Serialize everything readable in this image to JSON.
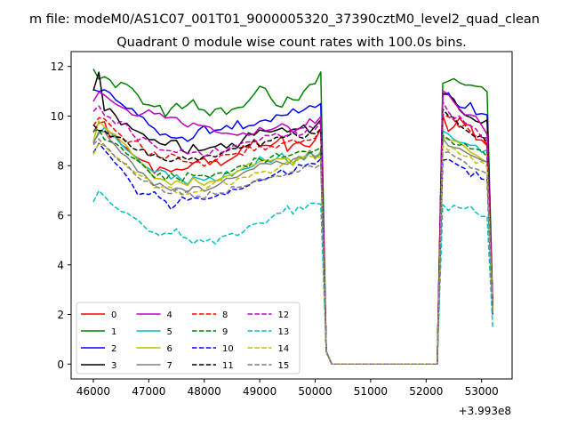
{
  "chart_data": {
    "type": "line",
    "suptitle": "m file: modeM0/AS1C07_001T01_9000005320_37390cztM0_level2_quad_clean",
    "title": "Quadrant 0 module wise count rates with 100.0s bins.",
    "xlabel": "",
    "ylabel": "",
    "x_offset_label": "+3.993e8",
    "xlim": [
      45600,
      53550
    ],
    "ylim": [
      -0.6,
      12.6
    ],
    "xticks": [
      46000,
      47000,
      48000,
      49000,
      50000,
      51000,
      52000,
      53000
    ],
    "yticks": [
      0,
      2,
      4,
      6,
      8,
      10,
      12
    ],
    "legend": {
      "position": "lower-left",
      "ncol": 4
    },
    "x_active1": [
      46000,
      46100,
      46200,
      46300,
      46400,
      46500,
      46600,
      46700,
      46800,
      46900,
      47000,
      47100,
      47200,
      47300,
      47400,
      47500,
      47600,
      47700,
      47800,
      47900,
      48000,
      48100,
      48200,
      48300,
      48400,
      48500,
      48600,
      48700,
      48800,
      48900,
      49000,
      49100,
      49200,
      49300,
      49400,
      49500,
      49600,
      49700,
      49800,
      49900,
      50000,
      50100
    ],
    "x_gap": [
      50200,
      50300,
      50400,
      52200
    ],
    "x_active2": [
      52300,
      52400,
      52500,
      52600,
      52700,
      52800,
      52900,
      53000,
      53100,
      53200
    ],
    "series": [
      {
        "name": "0",
        "color": "#ff0000",
        "dash": false,
        "act1": [
          9.35,
          9.72,
          9.77,
          9.14,
          9.22,
          8.85,
          8.71,
          8.46,
          8.3,
          8.2,
          8.12,
          7.69,
          7.94,
          7.87,
          7.76,
          7.86,
          7.83,
          7.9,
          8.1,
          8.23,
          8.3,
          8.04,
          8.25,
          8.01,
          8.16,
          8.29,
          8.44,
          8.8,
          8.72,
          9.06,
          8.8,
          8.82,
          8.8,
          8.96,
          9.19,
          8.58,
          8.85,
          8.96,
          8.81,
          8.76,
          9.04,
          9.5
        ],
        "gap": [
          0.5,
          0.0,
          0.0,
          0.0
        ],
        "act2": [
          10.02,
          9.39,
          9.57,
          9.92,
          9.66,
          9.63,
          9.05,
          9.03,
          8.81,
          2.4
        ]
      },
      {
        "name": "1",
        "color": "#008000",
        "dash": false,
        "act1": [
          11.9,
          11.49,
          11.59,
          11.46,
          11.15,
          11.36,
          11.28,
          11.12,
          10.85,
          10.48,
          10.45,
          10.38,
          10.43,
          9.97,
          10.29,
          10.51,
          10.3,
          10.45,
          10.66,
          10.28,
          10.24,
          10.02,
          10.28,
          10.33,
          10.07,
          10.27,
          10.34,
          10.37,
          10.61,
          10.89,
          11.2,
          11.12,
          10.72,
          10.43,
          10.36,
          10.77,
          10.66,
          10.64,
          11.01,
          11.27,
          11.31,
          11.78
        ],
        "gap": [
          0.5,
          0.0,
          0.0,
          0.0
        ],
        "act2": [
          11.32,
          11.41,
          11.51,
          11.35,
          11.25,
          11.25,
          11.2,
          11.18,
          10.98,
          2.4
        ]
      },
      {
        "name": "2",
        "color": "#0000ff",
        "dash": false,
        "act1": [
          11.07,
          10.99,
          11.06,
          10.94,
          10.66,
          10.5,
          10.31,
          10.3,
          10.04,
          9.95,
          9.65,
          9.5,
          9.24,
          9.28,
          9.14,
          9.11,
          9.15,
          8.98,
          9.12,
          9.45,
          9.61,
          9.3,
          9.43,
          9.45,
          9.62,
          9.48,
          9.81,
          9.49,
          9.61,
          9.63,
          9.79,
          9.84,
          9.78,
          10.05,
          10.02,
          10.05,
          10.29,
          10.13,
          10.25,
          10.42,
          10.35,
          10.5
        ],
        "gap": [
          0.5,
          0.0,
          0.0,
          0.0
        ],
        "act2": [
          10.86,
          10.94,
          10.58,
          10.37,
          10.32,
          10.54,
          10.06,
          10.1,
          10.05,
          2.3
        ]
      },
      {
        "name": "3",
        "color": "#000000",
        "dash": false,
        "act1": [
          11.03,
          11.77,
          10.21,
          10.3,
          10.03,
          9.65,
          9.71,
          9.48,
          9.38,
          9.27,
          9.05,
          9.05,
          8.89,
          8.83,
          9.01,
          9.02,
          8.61,
          8.48,
          8.85,
          8.6,
          8.64,
          8.73,
          8.77,
          8.89,
          8.71,
          8.9,
          8.73,
          9.05,
          9.32,
          9.23,
          9.44,
          9.39,
          9.36,
          9.43,
          9.52,
          9.36,
          9.47,
          9.48,
          9.64,
          9.33,
          9.59,
          9.84
        ],
        "gap": [
          0.5,
          0.0,
          0.0,
          0.0
        ],
        "act2": [
          10.91,
          10.86,
          10.68,
          10.25,
          10.03,
          9.95,
          9.79,
          9.72,
          9.84,
          2.3
        ]
      },
      {
        "name": "4",
        "color": "#bf00bf",
        "dash": false,
        "act1": [
          10.59,
          10.97,
          10.85,
          10.66,
          10.49,
          10.37,
          10.26,
          10.05,
          10.01,
          10.11,
          10.25,
          10.09,
          10.11,
          9.92,
          9.95,
          9.94,
          9.71,
          9.56,
          9.72,
          9.63,
          9.6,
          9.56,
          9.37,
          9.31,
          9.31,
          9.27,
          9.23,
          9.32,
          9.23,
          9.28,
          9.54,
          9.41,
          9.45,
          9.54,
          9.69,
          9.59,
          9.34,
          9.5,
          9.53,
          9.89,
          9.71,
          9.98
        ],
        "gap": [
          0.5,
          0.0,
          0.0,
          0.0
        ],
        "act2": [
          11.02,
          10.87,
          10.57,
          10.29,
          10.05,
          10.05,
          9.98,
          9.63,
          9.26,
          2.3
        ]
      },
      {
        "name": "5",
        "color": "#00bfbf",
        "dash": false,
        "act1": [
          8.95,
          9.29,
          9.53,
          9.35,
          9.13,
          8.87,
          8.64,
          8.48,
          8.28,
          8.01,
          7.89,
          7.73,
          7.83,
          7.76,
          7.46,
          7.63,
          7.41,
          7.24,
          7.55,
          7.48,
          7.41,
          7.53,
          7.39,
          7.43,
          7.78,
          7.58,
          7.79,
          7.85,
          7.9,
          8.01,
          8.36,
          8.21,
          8.14,
          8.29,
          8.5,
          8.18,
          8.02,
          8.39,
          8.23,
          8.53,
          8.37,
          8.5
        ],
        "gap": [
          0.5,
          0.0,
          0.0,
          0.0
        ],
        "act2": [
          9.4,
          9.28,
          9.06,
          8.94,
          8.91,
          8.82,
          8.82,
          8.54,
          8.64,
          2.2
        ]
      },
      {
        "name": "6",
        "color": "#bfbf00",
        "dash": false,
        "act1": [
          8.97,
          9.8,
          9.57,
          9.35,
          9.25,
          8.98,
          8.81,
          8.48,
          8.19,
          8.06,
          7.8,
          7.48,
          7.48,
          7.39,
          7.22,
          7.39,
          7.3,
          7.2,
          7.51,
          7.32,
          7.21,
          7.36,
          7.38,
          7.49,
          7.58,
          7.64,
          7.76,
          7.9,
          8.08,
          8.02,
          8.18,
          8.22,
          8.2,
          8.28,
          8.27,
          8.31,
          8.11,
          8.38,
          8.34,
          8.6,
          8.26,
          8.6
        ],
        "gap": [
          0.5,
          0.0,
          0.0,
          0.0
        ],
        "act2": [
          9.15,
          9.05,
          9.01,
          8.92,
          8.77,
          8.54,
          8.43,
          8.27,
          8.13,
          2.2
        ]
      },
      {
        "name": "7",
        "color": "#808080",
        "dash": false,
        "act1": [
          8.9,
          9.36,
          9.38,
          9.04,
          8.81,
          8.51,
          8.37,
          8.11,
          7.76,
          7.69,
          7.44,
          7.2,
          7.29,
          7.12,
          7.0,
          7.1,
          7.06,
          6.92,
          7.16,
          7.16,
          6.97,
          7.06,
          7.15,
          7.3,
          7.49,
          7.49,
          7.55,
          7.71,
          7.82,
          7.88,
          8.08,
          8.09,
          8.06,
          8.18,
          8.1,
          8.05,
          8.26,
          8.34,
          8.26,
          8.62,
          8.3,
          8.49
        ],
        "gap": [
          0.5,
          0.0,
          0.0,
          0.0
        ],
        "act2": [
          9.1,
          8.8,
          8.73,
          8.7,
          8.56,
          8.43,
          8.33,
          8.22,
          8.15,
          2.1
        ]
      },
      {
        "name": "8",
        "color": "#ff0000",
        "dash": true,
        "act1": [
          9.61,
          9.93,
          9.89,
          9.65,
          9.41,
          9.22,
          8.91,
          8.99,
          8.99,
          8.69,
          8.41,
          8.55,
          8.32,
          8.29,
          8.48,
          8.4,
          8.18,
          8.15,
          8.1,
          8.16,
          7.98,
          8.16,
          8.17,
          8.43,
          8.45,
          8.45,
          8.51,
          8.43,
          8.8,
          8.6,
          8.81,
          8.64,
          8.79,
          8.72,
          8.9,
          8.97,
          9.05,
          8.89,
          9.02,
          9.03,
          9.11,
          9.55
        ],
        "gap": [
          0.5,
          0.0,
          0.0,
          0.0
        ],
        "act2": [
          10.08,
          9.97,
          9.85,
          9.55,
          9.64,
          9.37,
          9.19,
          9.17,
          8.86,
          2.4
        ]
      },
      {
        "name": "9",
        "color": "#008000",
        "dash": true,
        "act1": [
          9.4,
          9.46,
          9.06,
          8.97,
          8.9,
          8.73,
          8.48,
          8.33,
          8.2,
          8.02,
          7.77,
          7.52,
          7.69,
          7.42,
          7.7,
          7.51,
          7.36,
          7.71,
          7.61,
          7.6,
          7.61,
          7.52,
          7.67,
          7.71,
          7.69,
          7.79,
          7.95,
          8.02,
          7.93,
          8.3,
          8.27,
          8.13,
          8.34,
          8.49,
          8.34,
          8.38,
          8.46,
          8.57,
          8.58,
          8.51,
          8.61,
          8.71
        ],
        "gap": [
          0.5,
          0.0,
          0.0,
          0.0
        ],
        "act2": [
          9.23,
          9.08,
          8.86,
          8.83,
          8.88,
          8.68,
          8.67,
          8.61,
          8.36,
          2.2
        ]
      },
      {
        "name": "10",
        "color": "#0000ff",
        "dash": true,
        "act1": [
          8.52,
          8.9,
          8.64,
          8.37,
          8.09,
          7.88,
          7.58,
          7.25,
          6.83,
          6.88,
          6.84,
          6.95,
          6.7,
          6.57,
          6.24,
          6.44,
          6.74,
          6.61,
          6.7,
          6.69,
          6.64,
          6.68,
          6.76,
          6.88,
          6.83,
          7.06,
          7.03,
          7.09,
          7.2,
          7.37,
          7.4,
          7.46,
          7.56,
          7.69,
          7.84,
          7.63,
          7.72,
          8.04,
          7.98,
          8.1,
          8.07,
          8.27
        ],
        "gap": [
          0.5,
          0.0,
          0.0,
          0.0
        ],
        "act2": [
          8.22,
          8.26,
          8.12,
          7.99,
          7.88,
          7.56,
          7.75,
          7.46,
          7.44,
          2.0
        ]
      },
      {
        "name": "11",
        "color": "#000000",
        "dash": true,
        "act1": [
          9.65,
          9.41,
          9.43,
          9.18,
          9.17,
          9.13,
          8.97,
          8.71,
          8.61,
          8.66,
          8.38,
          8.45,
          8.33,
          8.21,
          8.17,
          8.27,
          8.37,
          8.23,
          8.34,
          8.21,
          8.39,
          8.42,
          8.35,
          8.49,
          8.59,
          8.69,
          8.69,
          8.74,
          8.83,
          9.01,
          8.77,
          8.98,
          9.01,
          9.15,
          9.13,
          9.19,
          9.33,
          9.16,
          9.1,
          9.31,
          9.29,
          9.45
        ],
        "gap": [
          0.5,
          0.0,
          0.0,
          0.0
        ],
        "act2": [
          10.28,
          10.02,
          9.94,
          9.62,
          9.46,
          9.3,
          9.13,
          9.22,
          8.94,
          2.4
        ]
      },
      {
        "name": "12",
        "color": "#bf00bf",
        "dash": true,
        "act1": [
          10.19,
          10.41,
          10.04,
          9.94,
          9.68,
          9.78,
          9.66,
          9.29,
          9.02,
          9.14,
          9.01,
          8.81,
          8.64,
          8.62,
          8.6,
          8.53,
          8.65,
          8.48,
          8.54,
          8.56,
          8.36,
          8.49,
          8.71,
          8.52,
          8.61,
          8.79,
          8.83,
          8.93,
          8.96,
          8.96,
          9.03,
          9.22,
          9.21,
          9.31,
          9.15,
          9.22,
          9.48,
          9.21,
          9.29,
          9.59,
          9.46,
          9.76
        ],
        "gap": [
          0.5,
          0.0,
          0.0,
          0.0
        ],
        "act2": [
          10.58,
          10.17,
          9.89,
          10.0,
          9.73,
          9.61,
          9.48,
          9.15,
          9.11,
          2.4
        ]
      },
      {
        "name": "13",
        "color": "#00bfbf",
        "dash": true,
        "act1": [
          6.54,
          6.99,
          6.77,
          6.51,
          6.32,
          6.15,
          6.11,
          5.94,
          5.82,
          5.59,
          5.36,
          5.3,
          5.18,
          5.29,
          5.25,
          5.45,
          5.13,
          5.06,
          4.85,
          5.03,
          4.93,
          5.03,
          4.85,
          5.13,
          5.19,
          5.27,
          5.19,
          5.32,
          5.55,
          5.65,
          5.69,
          5.67,
          5.89,
          6.07,
          6.09,
          6.38,
          6.05,
          6.36,
          6.23,
          6.48,
          6.49,
          6.45
        ],
        "gap": [
          0.5,
          0.0,
          0.0,
          0.0
        ],
        "act2": [
          6.43,
          6.19,
          6.4,
          6.3,
          6.27,
          6.37,
          6.11,
          5.95,
          5.96,
          1.5
        ]
      },
      {
        "name": "14",
        "color": "#bfbf00",
        "dash": true,
        "act1": [
          8.45,
          8.9,
          8.81,
          8.55,
          8.37,
          8.22,
          7.96,
          7.81,
          7.66,
          7.55,
          7.45,
          7.11,
          7.14,
          7.16,
          7.13,
          6.91,
          6.83,
          6.86,
          6.92,
          6.96,
          7.03,
          7.18,
          7.34,
          7.44,
          7.25,
          7.25,
          7.48,
          7.53,
          7.53,
          7.71,
          7.72,
          7.78,
          7.7,
          7.84,
          8.03,
          8.16,
          8.03,
          8.26,
          8.37,
          8.38,
          8.34,
          8.35
        ],
        "gap": [
          0.5,
          0.0,
          0.0,
          0.0
        ],
        "act2": [
          8.81,
          8.62,
          8.71,
          8.48,
          8.38,
          8.37,
          8.09,
          8.17,
          7.95,
          2.1
        ]
      },
      {
        "name": "15",
        "color": "#808080",
        "dash": true,
        "act1": [
          8.84,
          9.08,
          8.82,
          8.62,
          8.33,
          8.14,
          8.06,
          7.77,
          7.53,
          7.38,
          7.37,
          7.17,
          7.1,
          6.9,
          6.87,
          7.04,
          6.85,
          6.98,
          6.75,
          6.77,
          6.66,
          6.95,
          6.85,
          6.9,
          6.88,
          7.16,
          7.13,
          7.16,
          7.23,
          7.38,
          7.47,
          7.43,
          7.53,
          7.59,
          7.56,
          7.68,
          7.76,
          7.75,
          7.95,
          7.99,
          7.92,
          8.05
        ],
        "gap": [
          0.5,
          0.0,
          0.0,
          0.0
        ],
        "act2": [
          8.53,
          8.55,
          8.39,
          8.27,
          8.14,
          7.91,
          7.87,
          7.79,
          7.67,
          2.0
        ]
      }
    ]
  }
}
